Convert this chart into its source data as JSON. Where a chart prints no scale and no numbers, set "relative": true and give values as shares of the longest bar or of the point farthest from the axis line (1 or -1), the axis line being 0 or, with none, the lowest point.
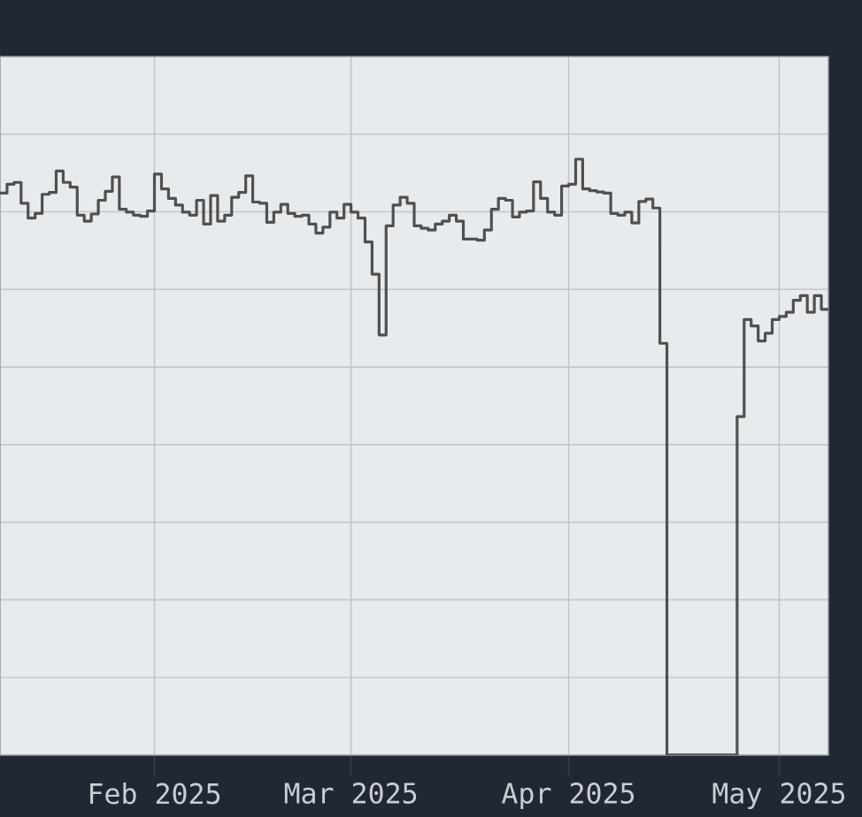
{
  "chart_data": {
    "type": "step",
    "relative": true,
    "color": "#505050",
    "grid": true,
    "tick_labels": "x",
    "xlim": [
      "2025-01-10",
      "2025-05-08"
    ],
    "xticks": [
      {
        "value": "2025-02-01",
        "label": "Feb 2025"
      },
      {
        "value": "2025-03-01",
        "label": "Mar 2025"
      },
      {
        "value": "2025-04-01",
        "label": "Apr 2025"
      },
      {
        "value": "2025-05-01",
        "label": "May 2025"
      }
    ],
    "x": [
      "2025-01-10",
      "2025-01-11",
      "2025-01-12",
      "2025-01-13",
      "2025-01-14",
      "2025-01-15",
      "2025-01-16",
      "2025-01-17",
      "2025-01-18",
      "2025-01-19",
      "2025-01-20",
      "2025-01-21",
      "2025-01-22",
      "2025-01-23",
      "2025-01-24",
      "2025-01-25",
      "2025-01-26",
      "2025-01-27",
      "2025-01-28",
      "2025-01-29",
      "2025-01-30",
      "2025-01-31",
      "2025-02-01",
      "2025-02-02",
      "2025-02-03",
      "2025-02-04",
      "2025-02-05",
      "2025-02-06",
      "2025-02-07",
      "2025-02-08",
      "2025-02-09",
      "2025-02-10",
      "2025-02-11",
      "2025-02-12",
      "2025-02-13",
      "2025-02-14",
      "2025-02-15",
      "2025-02-16",
      "2025-02-17",
      "2025-02-18",
      "2025-02-19",
      "2025-02-20",
      "2025-02-21",
      "2025-02-22",
      "2025-02-23",
      "2025-02-24",
      "2025-02-25",
      "2025-02-26",
      "2025-02-27",
      "2025-02-28",
      "2025-03-01",
      "2025-03-02",
      "2025-03-03",
      "2025-03-04",
      "2025-03-05",
      "2025-03-06",
      "2025-03-07",
      "2025-03-08",
      "2025-03-09",
      "2025-03-10",
      "2025-03-11",
      "2025-03-12",
      "2025-03-13",
      "2025-03-14",
      "2025-03-15",
      "2025-03-16",
      "2025-03-17",
      "2025-03-18",
      "2025-03-19",
      "2025-03-20",
      "2025-03-21",
      "2025-03-22",
      "2025-03-23",
      "2025-03-24",
      "2025-03-25",
      "2025-03-26",
      "2025-03-27",
      "2025-03-28",
      "2025-03-29",
      "2025-03-30",
      "2025-03-31",
      "2025-04-01",
      "2025-04-02",
      "2025-04-03",
      "2025-04-04",
      "2025-04-05",
      "2025-04-06",
      "2025-04-07",
      "2025-04-08",
      "2025-04-09",
      "2025-04-10",
      "2025-04-11",
      "2025-04-12",
      "2025-04-13",
      "2025-04-14",
      "2025-04-15",
      "2025-04-16",
      "2025-04-17",
      "2025-04-18",
      "2025-04-19",
      "2025-04-20",
      "2025-04-21",
      "2025-04-22",
      "2025-04-23",
      "2025-04-24",
      "2025-04-25",
      "2025-04-26",
      "2025-04-27",
      "2025-04-28",
      "2025-04-29",
      "2025-04-30",
      "2025-05-01",
      "2025-05-02",
      "2025-05-03",
      "2025-05-04",
      "2025-05-05",
      "2025-05-06",
      "2025-05-07",
      "2025-05-08"
    ],
    "values": [
      0.943,
      0.958,
      0.961,
      0.926,
      0.901,
      0.909,
      0.941,
      0.944,
      0.98,
      0.961,
      0.953,
      0.906,
      0.896,
      0.908,
      0.931,
      0.946,
      0.97,
      0.916,
      0.911,
      0.906,
      0.904,
      0.913,
      0.975,
      0.95,
      0.934,
      0.923,
      0.911,
      0.906,
      0.931,
      0.891,
      0.939,
      0.896,
      0.906,
      0.936,
      0.944,
      0.972,
      0.928,
      0.926,
      0.894,
      0.911,
      0.924,
      0.909,
      0.904,
      0.906,
      0.891,
      0.876,
      0.886,
      0.911,
      0.901,
      0.924,
      0.911,
      0.901,
      0.861,
      0.807,
      0.705,
      0.888,
      0.923,
      0.936,
      0.926,
      0.888,
      0.884,
      0.881,
      0.891,
      0.896,
      0.906,
      0.896,
      0.866,
      0.866,
      0.864,
      0.881,
      0.916,
      0.934,
      0.931,
      0.903,
      0.911,
      0.913,
      0.962,
      0.934,
      0.911,
      0.906,
      0.955,
      0.958,
      1.0,
      0.95,
      0.947,
      0.945,
      0.943,
      0.909,
      0.906,
      0.911,
      0.893,
      0.929,
      0.933,
      0.918,
      0.691,
      0,
      0,
      0,
      0,
      0,
      0,
      0,
      0,
      0,
      0,
      0.568,
      0.731,
      0.72,
      0.695,
      0.708,
      0.731,
      0.736,
      0.743,
      0.763,
      0.771,
      0.743,
      0.771,
      0.748,
      0.748
    ]
  }
}
